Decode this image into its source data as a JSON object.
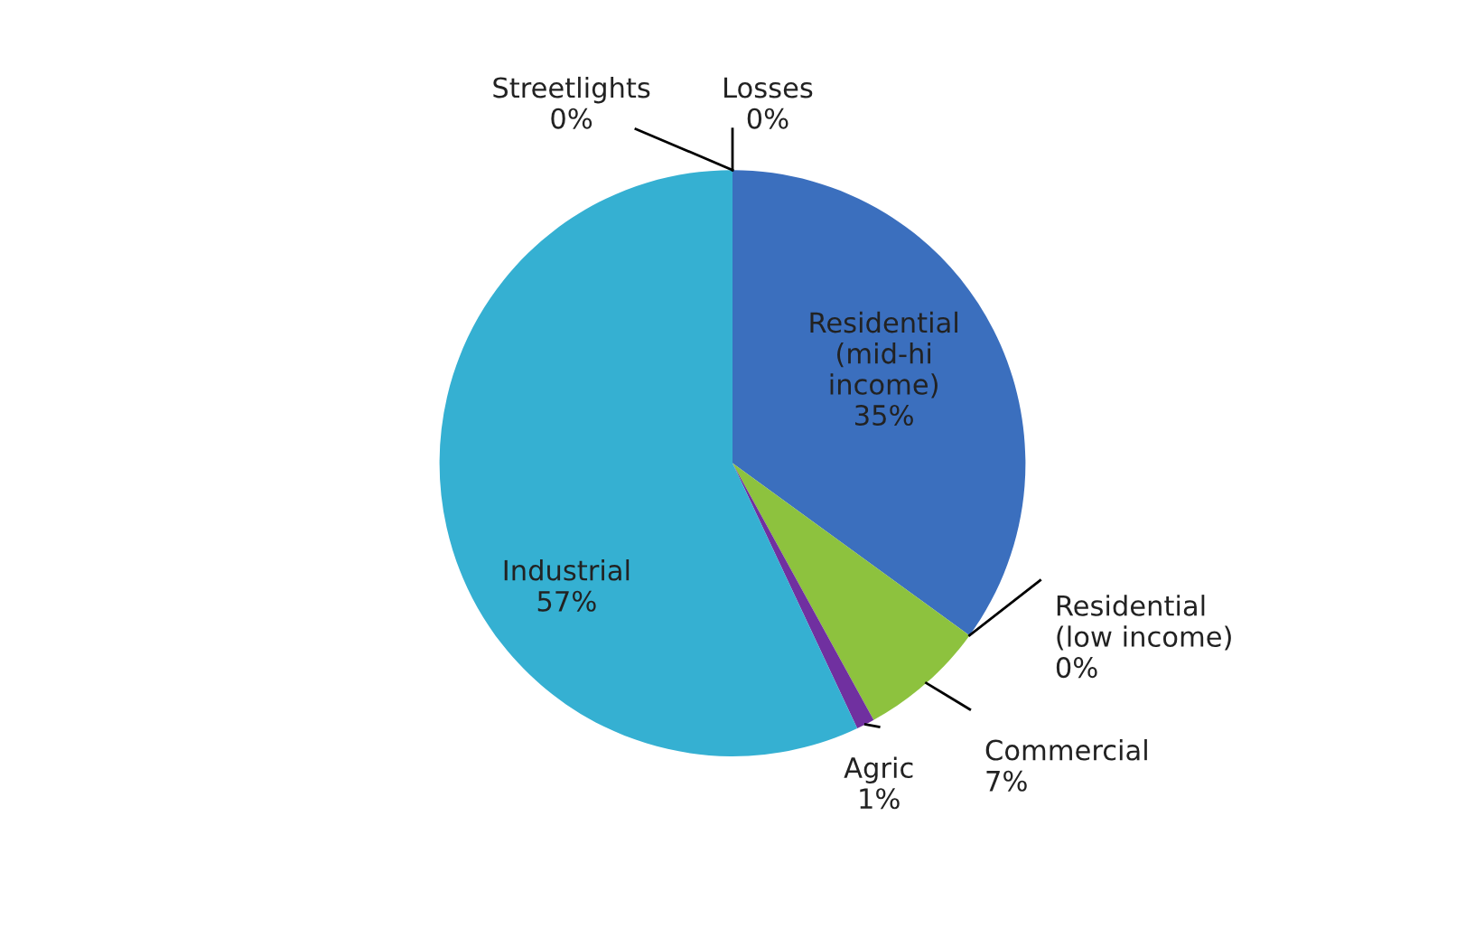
{
  "chart_data": {
    "type": "pie",
    "categories": [
      "Residential (mid-hi income)",
      "Residential (low income)",
      "Commercial",
      "Agric",
      "Industrial",
      "Streetlights",
      "Losses"
    ],
    "values": [
      35,
      0,
      7,
      1,
      57,
      0,
      0
    ],
    "value_labels": [
      "35%",
      "0%",
      "7%",
      "1%",
      "57%",
      "0%",
      "0%"
    ],
    "colors": [
      "#3b6fbe",
      "#7a4ea3",
      "#8dc23e",
      "#7030a0",
      "#35b0d2",
      "#c0504d",
      "#4f81bd"
    ]
  }
}
